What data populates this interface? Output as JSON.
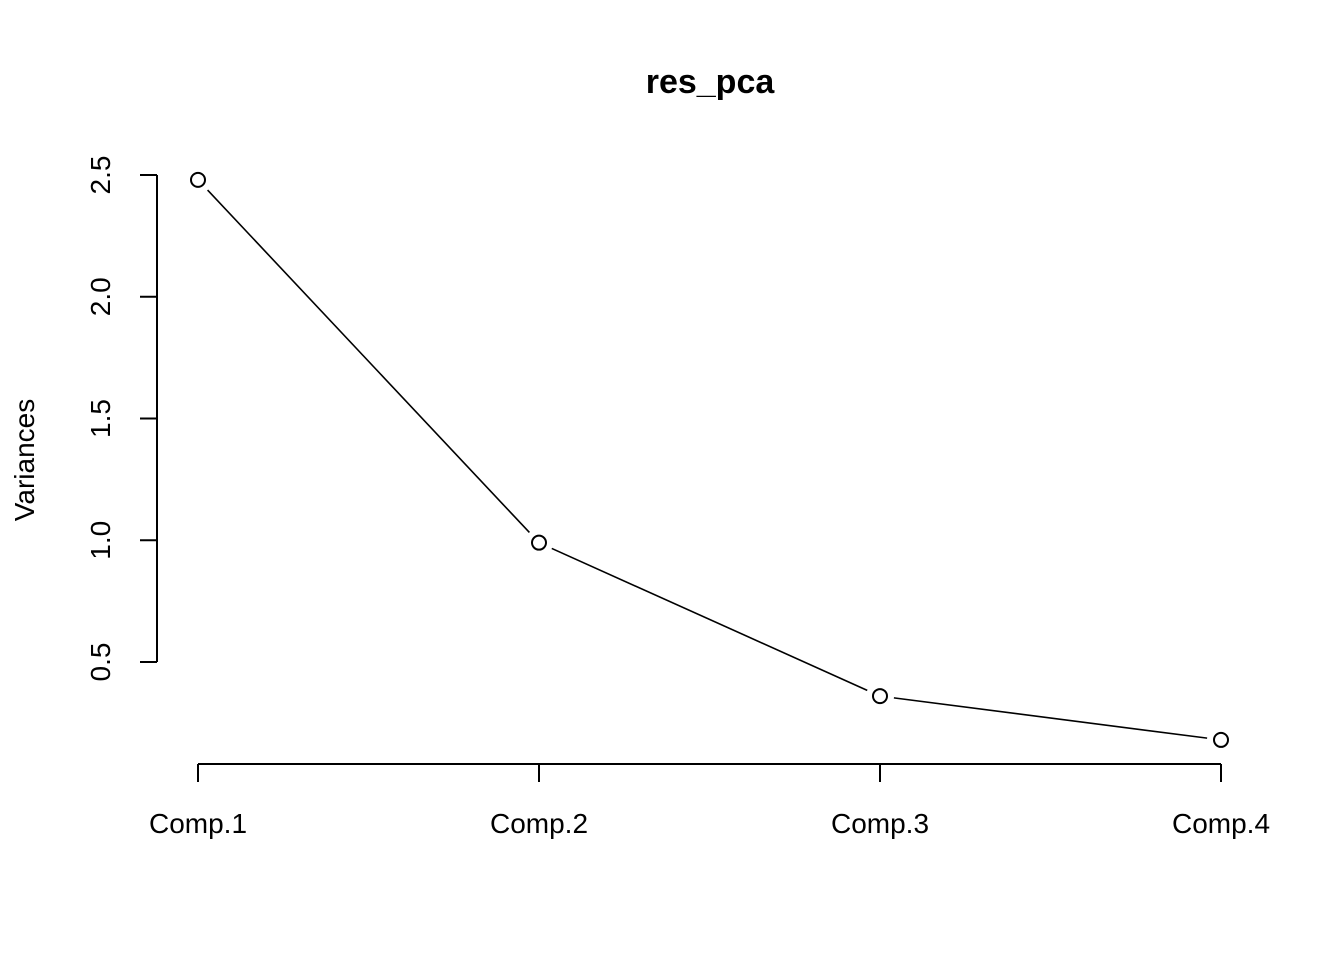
{
  "chart_data": {
    "type": "line",
    "title": "res_pca",
    "xlabel": "",
    "ylabel": "Variances",
    "categories": [
      "Comp.1",
      "Comp.2",
      "Comp.3",
      "Comp.4"
    ],
    "series": [
      {
        "values": [
          2.48,
          0.99,
          0.36,
          0.18
        ]
      }
    ],
    "yticks": [
      0.5,
      1.0,
      1.5,
      2.0,
      2.5
    ],
    "ytick_labels": [
      "0.5",
      "1.0",
      "1.5",
      "2.0",
      "2.5"
    ],
    "ylim": [
      0.5,
      2.5
    ],
    "grid": false,
    "marker": "open-circle",
    "colors": {
      "line": "#000000",
      "marker_fill": "#ffffff",
      "background": "#ffffff"
    }
  }
}
